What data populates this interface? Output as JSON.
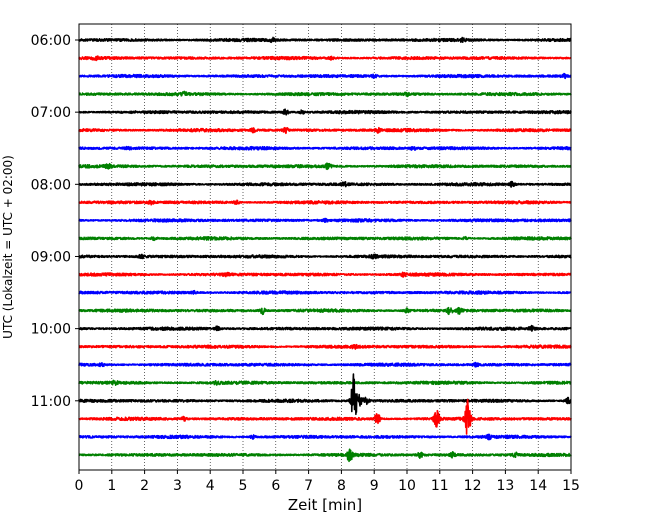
{
  "chart_data": {
    "type": "line",
    "title": "",
    "xlabel": "Zeit  [min]",
    "ylabel": "UTC (Lokalzeit = UTC + 02:00)",
    "xlim": [
      0,
      15
    ],
    "x_ticks": [
      0,
      1,
      2,
      3,
      4,
      5,
      6,
      7,
      8,
      9,
      10,
      11,
      12,
      13,
      14,
      15
    ],
    "x_tick_labels": [
      "0",
      "1",
      "2",
      "3",
      "4",
      "5",
      "6",
      "7",
      "8",
      "9",
      "10",
      "11",
      "12",
      "13",
      "14",
      "15"
    ],
    "y_tick_labels": [
      "06:00",
      "07:00",
      "08:00",
      "09:00",
      "10:00",
      "11:00"
    ],
    "trace_interval_minutes": 15,
    "grid": "vertical dotted",
    "series_colors": [
      "#000000",
      "#ff0000",
      "#0000ff",
      "#008000"
    ],
    "traces": [
      {
        "start": "06:00",
        "color": "#000000",
        "events": [
          {
            "x": 5.9,
            "amp": 1.6
          },
          {
            "x": 11.7,
            "amp": 1.6
          }
        ]
      },
      {
        "start": "06:15",
        "color": "#ff0000",
        "events": [
          {
            "x": 0.5,
            "amp": 1.3
          },
          {
            "x": 7.7,
            "amp": 1.4
          }
        ]
      },
      {
        "start": "06:30",
        "color": "#0000ff",
        "events": [
          {
            "x": 9.0,
            "amp": 1.4
          },
          {
            "x": 14.8,
            "amp": 1.5
          }
        ]
      },
      {
        "start": "06:45",
        "color": "#008000",
        "events": [
          {
            "x": 3.2,
            "amp": 1.3
          },
          {
            "x": 10.0,
            "amp": 1.3
          }
        ]
      },
      {
        "start": "07:00",
        "color": "#000000",
        "events": [
          {
            "x": 6.3,
            "amp": 2.5
          },
          {
            "x": 6.8,
            "amp": 1.6
          }
        ]
      },
      {
        "start": "07:15",
        "color": "#ff0000",
        "events": [
          {
            "x": 5.3,
            "amp": 1.8
          },
          {
            "x": 6.3,
            "amp": 2.3
          },
          {
            "x": 9.1,
            "amp": 1.8
          }
        ]
      },
      {
        "start": "07:30",
        "color": "#0000ff",
        "events": [
          {
            "x": 1.5,
            "amp": 1.4
          },
          {
            "x": 10.2,
            "amp": 1.4
          }
        ]
      },
      {
        "start": "07:45",
        "color": "#008000",
        "events": [
          {
            "x": 0.9,
            "amp": 1.6
          },
          {
            "x": 7.6,
            "amp": 3.0
          }
        ]
      },
      {
        "start": "08:00",
        "color": "#000000",
        "events": [
          {
            "x": 8.1,
            "amp": 2.0
          },
          {
            "x": 13.2,
            "amp": 2.0
          }
        ]
      },
      {
        "start": "08:15",
        "color": "#ff0000",
        "events": [
          {
            "x": 2.2,
            "amp": 1.5
          },
          {
            "x": 4.8,
            "amp": 1.5
          }
        ]
      },
      {
        "start": "08:30",
        "color": "#0000ff",
        "events": [
          {
            "x": 7.5,
            "amp": 1.4
          }
        ]
      },
      {
        "start": "08:45",
        "color": "#008000",
        "events": [
          {
            "x": 2.3,
            "amp": 1.5
          },
          {
            "x": 11.8,
            "amp": 1.5
          }
        ]
      },
      {
        "start": "09:00",
        "color": "#000000",
        "events": [
          {
            "x": 1.9,
            "amp": 1.7
          },
          {
            "x": 9.0,
            "amp": 1.5
          }
        ]
      },
      {
        "start": "09:15",
        "color": "#ff0000",
        "events": [
          {
            "x": 4.5,
            "amp": 1.5
          },
          {
            "x": 9.9,
            "amp": 1.4
          }
        ]
      },
      {
        "start": "09:30",
        "color": "#0000ff",
        "events": [
          {
            "x": 3.5,
            "amp": 1.3
          }
        ]
      },
      {
        "start": "09:45",
        "color": "#008000",
        "events": [
          {
            "x": 5.6,
            "amp": 3.0
          },
          {
            "x": 10.0,
            "amp": 1.8
          },
          {
            "x": 11.3,
            "amp": 3.0
          },
          {
            "x": 11.6,
            "amp": 2.5
          }
        ]
      },
      {
        "start": "10:00",
        "color": "#000000",
        "events": [
          {
            "x": 4.2,
            "amp": 2.0
          },
          {
            "x": 13.8,
            "amp": 2.2
          }
        ]
      },
      {
        "start": "10:15",
        "color": "#ff0000",
        "events": [
          {
            "x": 8.4,
            "amp": 1.4
          }
        ]
      },
      {
        "start": "10:30",
        "color": "#0000ff",
        "events": [
          {
            "x": 0.7,
            "amp": 1.4
          },
          {
            "x": 12.1,
            "amp": 1.4
          }
        ]
      },
      {
        "start": "10:45",
        "color": "#008000",
        "events": [
          {
            "x": 1.1,
            "amp": 1.5
          },
          {
            "x": 4.2,
            "amp": 1.4
          }
        ]
      },
      {
        "start": "11:00",
        "color": "#000000",
        "events": [
          {
            "x": 8.38,
            "amp": 28.0
          },
          {
            "x": 8.55,
            "amp": 6.0
          },
          {
            "x": 8.75,
            "amp": 4.0
          },
          {
            "x": 14.9,
            "amp": 3.0
          }
        ]
      },
      {
        "start": "11:15",
        "color": "#ff0000",
        "events": [
          {
            "x": 3.2,
            "amp": 1.8
          },
          {
            "x": 9.1,
            "amp": 6.0
          },
          {
            "x": 10.9,
            "amp": 8.0
          },
          {
            "x": 11.85,
            "amp": 18.0
          }
        ]
      },
      {
        "start": "11:30",
        "color": "#0000ff",
        "events": [
          {
            "x": 5.3,
            "amp": 1.6
          },
          {
            "x": 12.5,
            "amp": 1.6
          }
        ]
      },
      {
        "start": "11:45",
        "color": "#008000",
        "events": [
          {
            "x": 8.25,
            "amp": 6.0
          },
          {
            "x": 10.4,
            "amp": 2.5
          },
          {
            "x": 11.4,
            "amp": 2.0
          },
          {
            "x": 13.3,
            "amp": 2.0
          }
        ]
      }
    ]
  }
}
